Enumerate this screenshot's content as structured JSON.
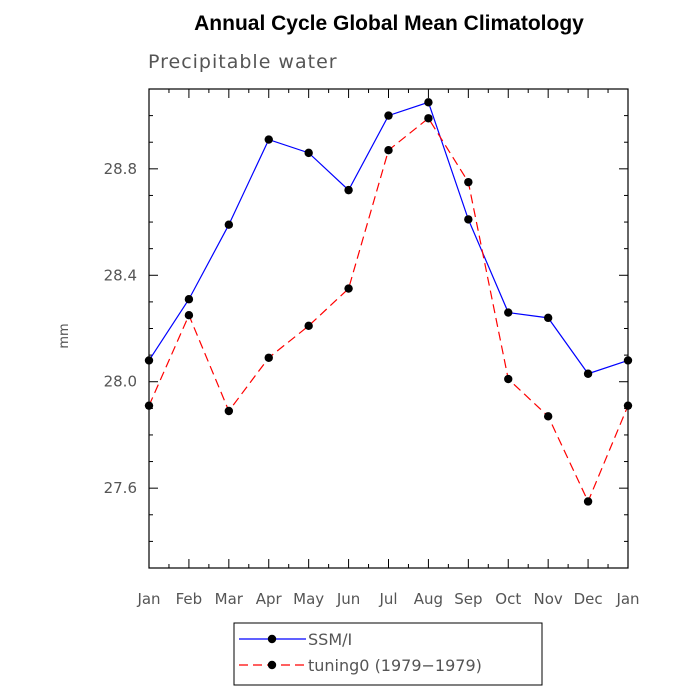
{
  "chart_data": {
    "type": "line",
    "title": "Annual Cycle Global Mean Climatology",
    "subtitle": "Precipitable water",
    "xlabel": "",
    "ylabel": "mm",
    "categories": [
      "Jan",
      "Feb",
      "Mar",
      "Apr",
      "May",
      "Jun",
      "Jul",
      "Aug",
      "Sep",
      "Oct",
      "Nov",
      "Dec",
      "Jan"
    ],
    "ylim": [
      27.3,
      29.1
    ],
    "yticks": [
      27.6,
      28.0,
      28.4,
      28.8
    ],
    "ytick_labels": [
      "27.6",
      "28.0",
      "28.4",
      "28.8"
    ],
    "grid": false,
    "legend_position": "bottom",
    "series": [
      {
        "name": "SSM/I",
        "color": "#0000ff",
        "line_style": "solid",
        "values": [
          28.08,
          28.31,
          28.59,
          28.91,
          28.86,
          28.72,
          29.0,
          29.05,
          28.61,
          28.26,
          28.24,
          28.03,
          28.08
        ]
      },
      {
        "name": "tuning0 (1979−1979)",
        "color": "#ff0000",
        "line_style": "dashed",
        "values": [
          27.91,
          28.25,
          27.89,
          28.09,
          28.21,
          28.35,
          28.87,
          28.99,
          28.75,
          28.01,
          27.87,
          27.55,
          27.91
        ]
      }
    ]
  }
}
